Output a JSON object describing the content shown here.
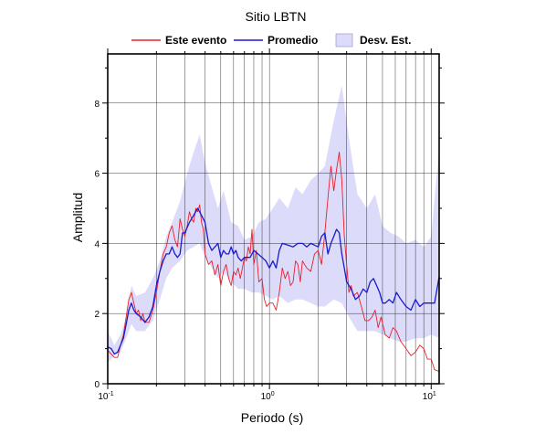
{
  "chart_data": {
    "type": "line",
    "title": "Sitio LBTN",
    "xlabel": "Periodo (s)",
    "ylabel": "Amplitud",
    "x_scale": "log",
    "xlim": [
      0.1,
      11.2
    ],
    "ylim": [
      0,
      9.4
    ],
    "x_ticks": [
      {
        "value": 0.1,
        "base": "10",
        "exp": "-1"
      },
      {
        "value": 1,
        "base": "10",
        "exp": "0"
      },
      {
        "value": 10,
        "base": "10",
        "exp": "1"
      }
    ],
    "y_ticks": [
      {
        "value": 0,
        "label": "0"
      },
      {
        "value": 2,
        "label": "2"
      },
      {
        "value": 4,
        "label": "4"
      },
      {
        "value": 6,
        "label": "6"
      },
      {
        "value": 8,
        "label": "8"
      }
    ],
    "grid": true,
    "legend_position": "top",
    "legend": [
      {
        "label": "Este evento",
        "kind": "line",
        "color": "#e8202a"
      },
      {
        "label": "Promedio",
        "kind": "line",
        "color": "#1a1ad0"
      },
      {
        "label": "Desv. Est.",
        "kind": "band",
        "color": "#dcdcfa",
        "border": "#8a8ac8"
      }
    ],
    "band": {
      "name": "Desv. Est.",
      "color": "#dcdcfa",
      "x": [
        0.1,
        0.11,
        0.12,
        0.13,
        0.14,
        0.15,
        0.17,
        0.19,
        0.21,
        0.23,
        0.25,
        0.28,
        0.31,
        0.34,
        0.37,
        0.4,
        0.44,
        0.48,
        0.52,
        0.58,
        0.64,
        0.7,
        0.78,
        0.86,
        0.95,
        1.05,
        1.15,
        1.3,
        1.45,
        1.6,
        1.8,
        2.0,
        2.2,
        2.5,
        2.8,
        3.1,
        3.5,
        4.0,
        4.5,
        5.0,
        5.6,
        6.3,
        7.0,
        8.0,
        9.0,
        10.0,
        11.2
      ],
      "upper": [
        1.5,
        1.1,
        1.4,
        1.9,
        2.8,
        2.5,
        2.6,
        3.0,
        3.5,
        4.2,
        4.6,
        5.2,
        6.0,
        6.6,
        7.1,
        6.3,
        5.6,
        5.0,
        5.5,
        4.6,
        4.5,
        4.1,
        4.2,
        4.6,
        4.7,
        5.0,
        5.3,
        5.0,
        5.6,
        5.4,
        5.8,
        6.0,
        6.2,
        7.5,
        8.5,
        7.0,
        5.4,
        5.0,
        5.4,
        4.5,
        4.3,
        4.2,
        4.0,
        4.1,
        3.9,
        4.2,
        6.7
      ],
      "lower": [
        0.6,
        0.8,
        0.9,
        1.3,
        1.7,
        1.5,
        1.5,
        1.8,
        2.4,
        3.0,
        3.3,
        3.5,
        3.8,
        3.9,
        4.0,
        3.6,
        3.3,
        3.0,
        3.2,
        2.9,
        2.7,
        2.7,
        2.6,
        2.6,
        2.5,
        2.4,
        2.5,
        2.3,
        2.4,
        2.4,
        2.3,
        2.2,
        2.2,
        2.4,
        2.3,
        1.9,
        1.5,
        1.5,
        1.5,
        1.4,
        1.3,
        1.2,
        1.2,
        1.3,
        1.3,
        1.4,
        1.3
      ]
    },
    "series": [
      {
        "name": "Este evento",
        "color": "#e8202a",
        "x": [
          0.1,
          0.105,
          0.11,
          0.115,
          0.12,
          0.125,
          0.13,
          0.135,
          0.14,
          0.145,
          0.15,
          0.155,
          0.16,
          0.165,
          0.17,
          0.18,
          0.19,
          0.2,
          0.21,
          0.22,
          0.23,
          0.24,
          0.25,
          0.26,
          0.27,
          0.28,
          0.29,
          0.3,
          0.31,
          0.32,
          0.33,
          0.34,
          0.35,
          0.36,
          0.37,
          0.38,
          0.39,
          0.4,
          0.42,
          0.44,
          0.46,
          0.48,
          0.5,
          0.52,
          0.54,
          0.56,
          0.58,
          0.6,
          0.62,
          0.64,
          0.66,
          0.68,
          0.7,
          0.72,
          0.74,
          0.76,
          0.78,
          0.8,
          0.83,
          0.86,
          0.9,
          0.93,
          0.96,
          1.0,
          1.05,
          1.1,
          1.15,
          1.2,
          1.25,
          1.3,
          1.35,
          1.4,
          1.45,
          1.5,
          1.55,
          1.6,
          1.7,
          1.8,
          1.9,
          2.0,
          2.1,
          2.2,
          2.3,
          2.4,
          2.5,
          2.6,
          2.7,
          2.8,
          2.9,
          3.0,
          3.1,
          3.2,
          3.3,
          3.5,
          3.7,
          3.9,
          4.1,
          4.3,
          4.5,
          4.7,
          4.9,
          5.2,
          5.5,
          5.8,
          6.1,
          6.5,
          7.0,
          7.5,
          8.0,
          8.5,
          9.0,
          9.5,
          10.0,
          10.5,
          11.2
        ],
        "y": [
          0.95,
          0.85,
          0.75,
          0.75,
          1.1,
          1.4,
          1.9,
          2.4,
          2.6,
          2.3,
          2.0,
          2.1,
          1.8,
          2.0,
          1.75,
          1.75,
          2.1,
          2.6,
          3.2,
          3.7,
          3.9,
          4.3,
          4.5,
          4.1,
          3.9,
          4.7,
          4.4,
          4.2,
          4.5,
          4.9,
          4.7,
          4.6,
          5.0,
          4.9,
          5.1,
          4.6,
          4.4,
          3.7,
          3.4,
          3.5,
          3.1,
          3.4,
          2.8,
          3.2,
          3.4,
          3.0,
          2.8,
          3.2,
          3.1,
          3.3,
          3.0,
          3.3,
          3.6,
          3.5,
          3.9,
          3.7,
          4.4,
          3.4,
          3.8,
          2.9,
          3.0,
          2.4,
          2.2,
          2.3,
          2.3,
          2.1,
          2.6,
          3.3,
          3.0,
          3.2,
          2.8,
          2.9,
          3.5,
          3.4,
          2.9,
          3.5,
          3.3,
          3.2,
          3.7,
          3.8,
          3.4,
          4.3,
          5.3,
          6.2,
          5.5,
          6.1,
          6.6,
          5.8,
          4.2,
          3.4,
          2.6,
          2.8,
          2.5,
          2.6,
          2.2,
          1.8,
          1.8,
          1.9,
          2.1,
          1.6,
          1.9,
          1.4,
          1.3,
          1.6,
          1.5,
          1.2,
          1.0,
          0.8,
          0.9,
          1.1,
          1.0,
          0.7,
          0.7,
          0.4,
          0.35
        ]
      },
      {
        "name": "Promedio",
        "color": "#1a1ad0",
        "x": [
          0.1,
          0.105,
          0.11,
          0.115,
          0.12,
          0.125,
          0.13,
          0.135,
          0.14,
          0.145,
          0.15,
          0.16,
          0.17,
          0.18,
          0.19,
          0.2,
          0.21,
          0.22,
          0.23,
          0.24,
          0.25,
          0.26,
          0.27,
          0.28,
          0.29,
          0.3,
          0.32,
          0.34,
          0.36,
          0.38,
          0.4,
          0.42,
          0.44,
          0.46,
          0.48,
          0.5,
          0.52,
          0.54,
          0.56,
          0.58,
          0.6,
          0.62,
          0.64,
          0.67,
          0.7,
          0.73,
          0.76,
          0.8,
          0.85,
          0.9,
          0.95,
          1.0,
          1.05,
          1.1,
          1.15,
          1.2,
          1.3,
          1.4,
          1.5,
          1.6,
          1.7,
          1.8,
          1.9,
          2.0,
          2.1,
          2.2,
          2.3,
          2.4,
          2.5,
          2.6,
          2.7,
          2.8,
          2.9,
          3.0,
          3.2,
          3.4,
          3.6,
          3.8,
          4.0,
          4.2,
          4.4,
          4.6,
          4.8,
          5.0,
          5.2,
          5.5,
          5.8,
          6.1,
          6.5,
          7.0,
          7.5,
          8.0,
          8.5,
          9.0,
          9.5,
          10.0,
          10.5,
          11.2
        ],
        "y": [
          1.05,
          1.0,
          0.85,
          0.9,
          1.1,
          1.3,
          1.7,
          2.1,
          2.3,
          2.1,
          2.0,
          1.9,
          1.75,
          1.9,
          2.2,
          2.8,
          3.2,
          3.5,
          3.7,
          3.7,
          3.9,
          3.7,
          3.6,
          3.7,
          4.3,
          4.3,
          4.6,
          4.8,
          5.0,
          4.8,
          4.6,
          4.0,
          3.8,
          3.9,
          4.0,
          3.6,
          3.8,
          3.7,
          3.7,
          3.9,
          3.7,
          3.8,
          3.6,
          3.5,
          3.6,
          3.6,
          3.6,
          3.8,
          3.7,
          3.6,
          3.5,
          3.3,
          3.5,
          3.3,
          3.8,
          4.0,
          3.95,
          3.9,
          4.0,
          4.0,
          3.9,
          4.0,
          3.95,
          3.9,
          4.2,
          4.3,
          3.7,
          4.0,
          4.2,
          4.4,
          4.3,
          3.7,
          3.3,
          2.9,
          2.7,
          2.4,
          2.5,
          2.7,
          2.6,
          2.9,
          3.0,
          2.8,
          2.6,
          2.3,
          2.3,
          2.4,
          2.3,
          2.6,
          2.4,
          2.2,
          2.1,
          2.4,
          2.2,
          2.3,
          2.3,
          2.3,
          2.3,
          3.05
        ]
      }
    ]
  }
}
